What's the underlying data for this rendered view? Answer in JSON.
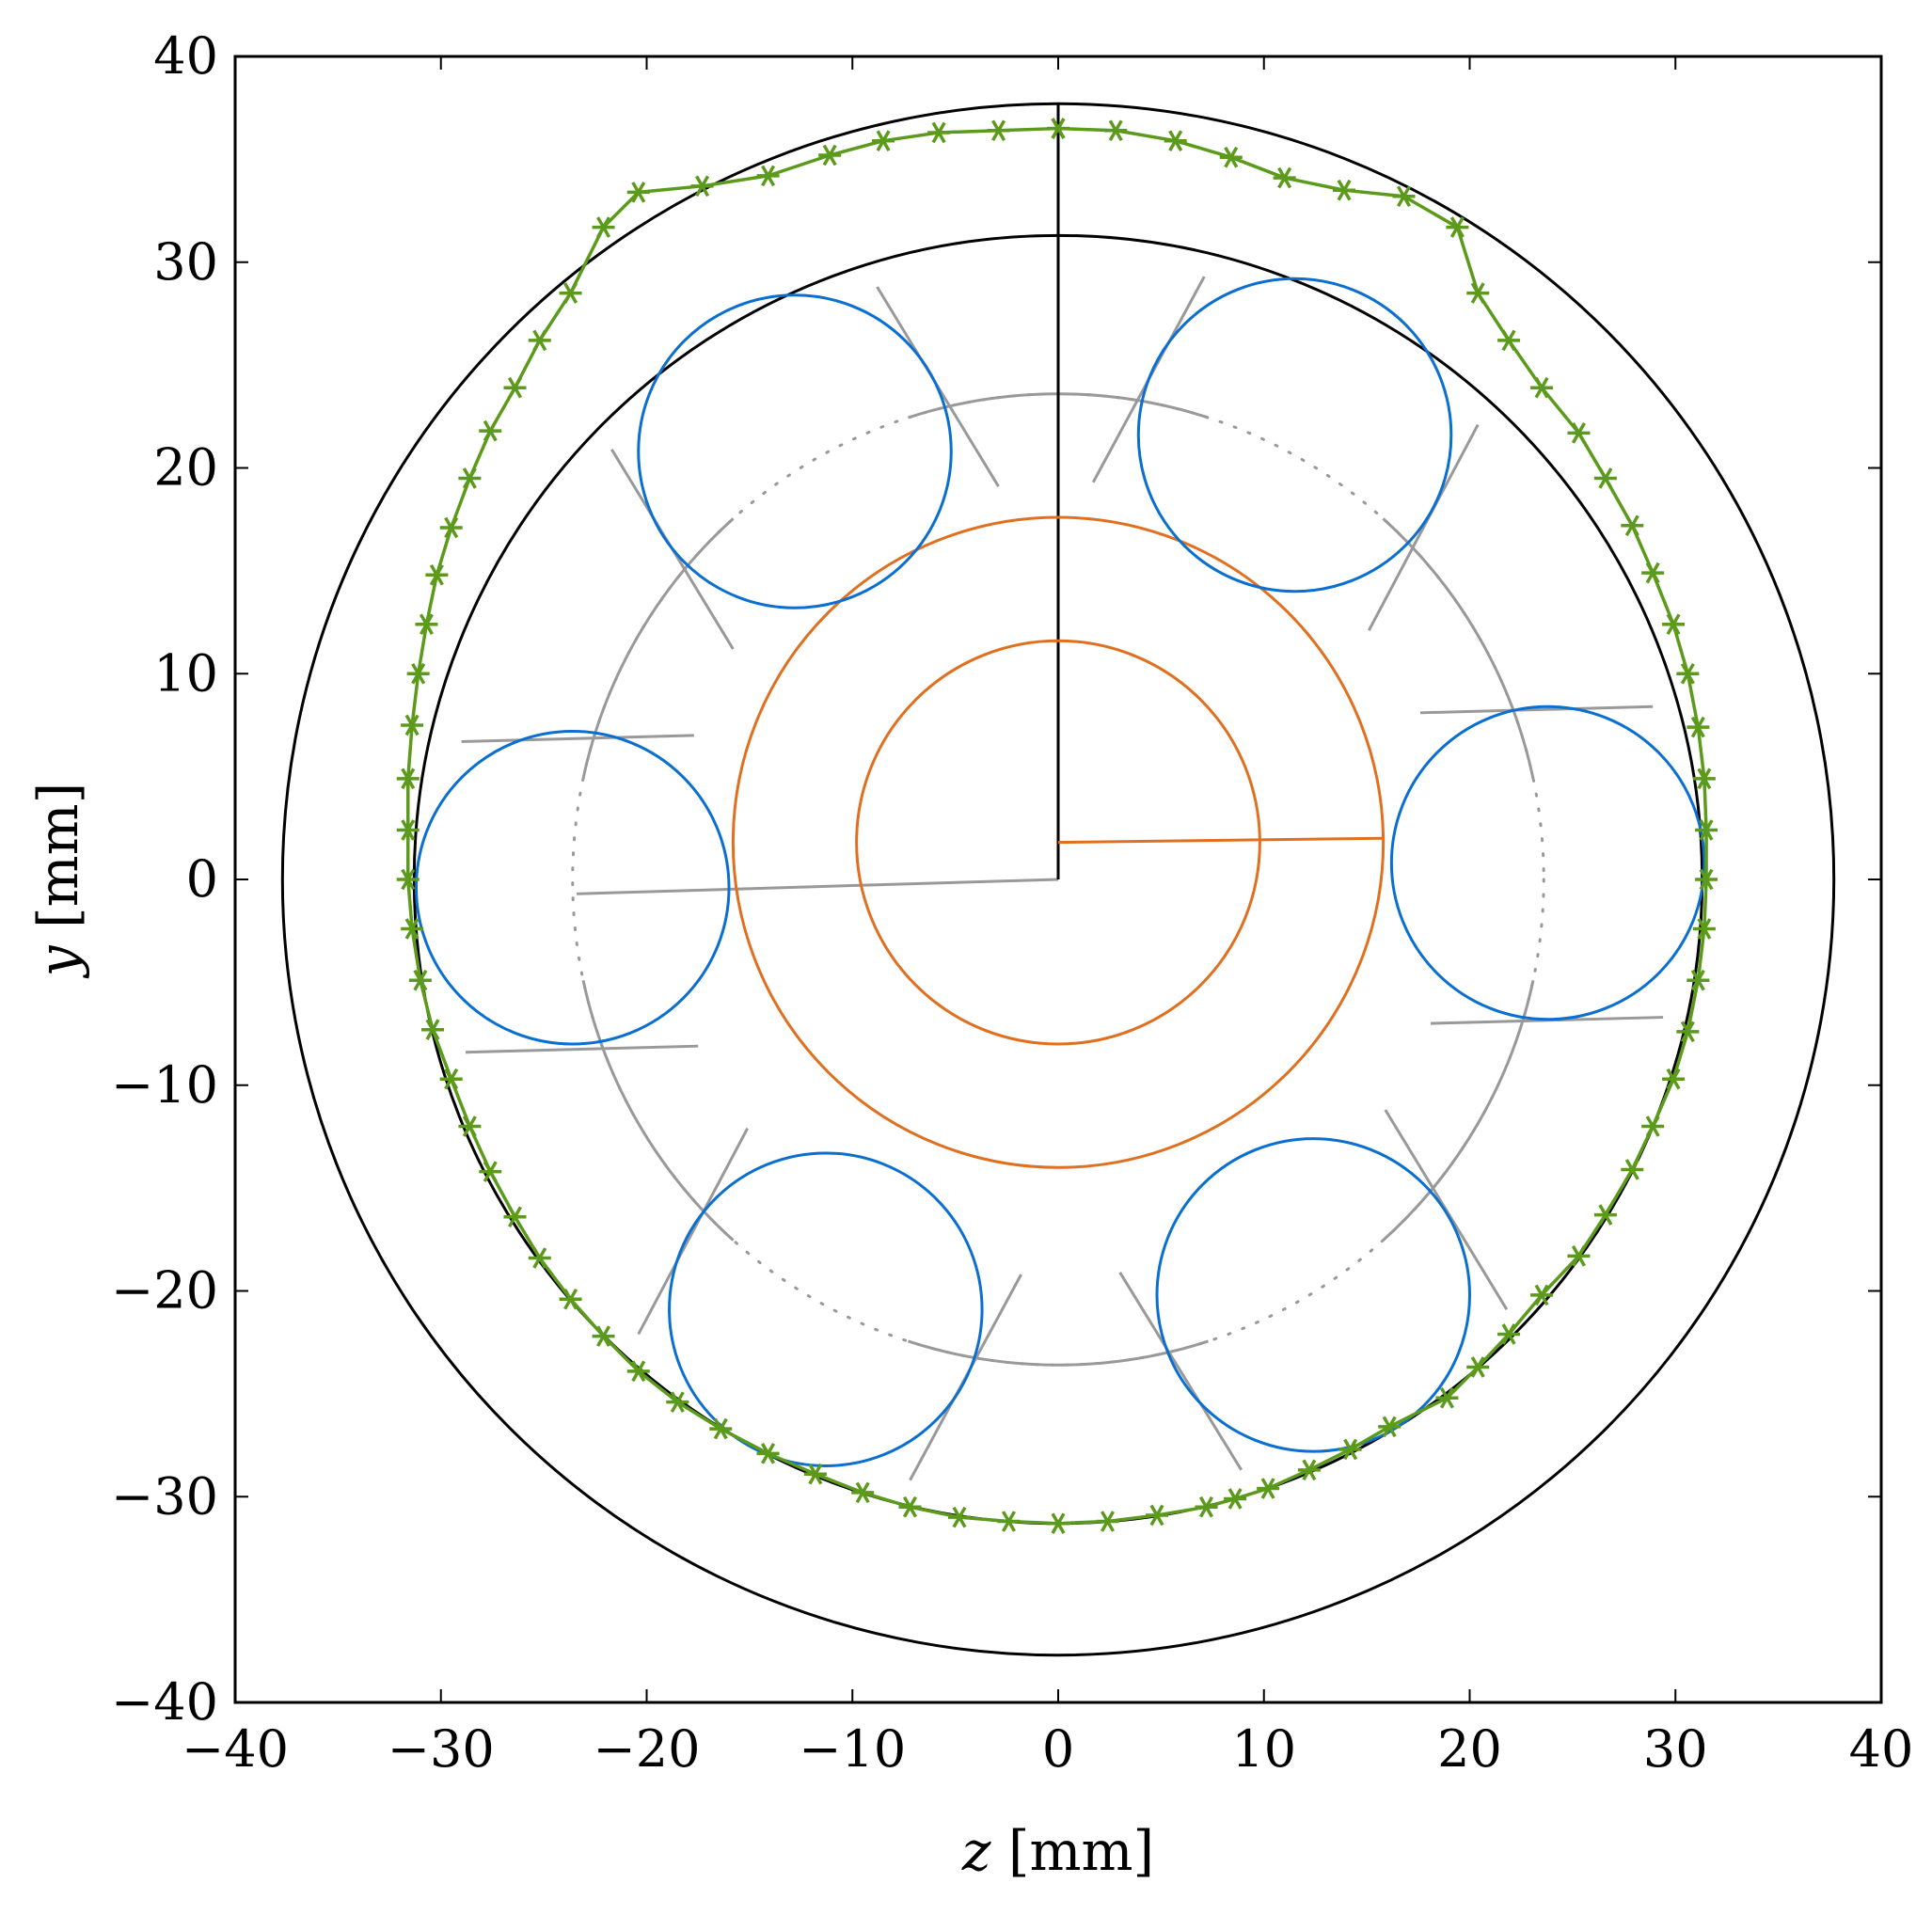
{
  "chart_data": {
    "type": "line",
    "title": "",
    "xlabel": {
      "var": "z",
      "unit": " [mm]"
    },
    "ylabel": {
      "var": "y",
      "unit": " [mm]"
    },
    "xlim": [
      -40,
      40
    ],
    "ylim": [
      -40,
      40
    ],
    "xticks": [
      "−40",
      "−30",
      "−20",
      "−10",
      "0",
      "10",
      "20",
      "30",
      "40"
    ],
    "yticks": [
      "−40",
      "−30",
      "−20",
      "−10",
      "0",
      "10",
      "20",
      "30",
      "40"
    ],
    "xtick_values": [
      -40,
      -30,
      -20,
      -10,
      0,
      10,
      20,
      30,
      40
    ],
    "ytick_values": [
      -40,
      -30,
      -20,
      -10,
      0,
      10,
      20,
      30,
      40
    ],
    "grid": false,
    "legend": "none",
    "colors": {
      "outer_race": "#000000",
      "rollers": "#0a6fd0",
      "inner_race": "#e07020",
      "cage": "#999999",
      "measured": "#5b9a1a"
    },
    "outer_race_circles": [
      {
        "cz": 0,
        "cy": 0,
        "r": 37.7
      },
      {
        "cz": 0,
        "cy": 0,
        "r": 31.3
      }
    ],
    "vertical_ref_line": {
      "z": [
        0,
        0
      ],
      "y": [
        0,
        37.7
      ]
    },
    "cage_circle": {
      "cz": 0,
      "cy": 0,
      "r": 23.6
    },
    "cage_ref_line": {
      "z": [
        0,
        -23.4
      ],
      "y": [
        0,
        -0.7
      ]
    },
    "inner_race_circles": [
      {
        "cz": 0,
        "cy": 1.8,
        "r": 15.8
      },
      {
        "cz": 0,
        "cy": 1.8,
        "r": 9.8
      }
    ],
    "inner_ref_line": {
      "z": [
        0,
        15.8
      ],
      "y": [
        1.8,
        2.0
      ]
    },
    "rollers": [
      {
        "cz": -12.8,
        "cy": 20.8,
        "r": 7.6
      },
      {
        "cz": 11.5,
        "cy": 21.6,
        "r": 7.6
      },
      {
        "cz": 23.8,
        "cy": 0.8,
        "r": 7.6
      },
      {
        "cz": 12.4,
        "cy": -20.2,
        "r": 7.6
      },
      {
        "cz": -11.3,
        "cy": -20.9,
        "r": 7.6
      },
      {
        "cz": -23.6,
        "cy": -0.4,
        "r": 7.6
      }
    ],
    "cage_pocket_lines": [
      {
        "z": [
          -8.8,
          -2.9
        ],
        "y": [
          28.8,
          19.1
        ]
      },
      {
        "z": [
          -21.7,
          -15.8
        ],
        "y": [
          20.9,
          11.2
        ]
      },
      {
        "z": [
          7.1,
          1.7
        ],
        "y": [
          29.3,
          19.3
        ]
      },
      {
        "z": [
          20.4,
          15.1
        ],
        "y": [
          22.1,
          12.1
        ]
      },
      {
        "z": [
          17.6,
          28.9
        ],
        "y": [
          8.1,
          8.4
        ]
      },
      {
        "z": [
          18.1,
          29.4
        ],
        "y": [
          -7.0,
          -6.7
        ]
      },
      {
        "z": [
          15.9,
          21.8
        ],
        "y": [
          -11.2,
          -20.9
        ]
      },
      {
        "z": [
          3.0,
          8.9
        ],
        "y": [
          -19.1,
          -28.7
        ]
      },
      {
        "z": [
          -1.8,
          -7.2
        ],
        "y": [
          -19.2,
          -29.2
        ]
      },
      {
        "z": [
          -15.1,
          -20.4
        ],
        "y": [
          -12.1,
          -22.1
        ]
      },
      {
        "z": [
          -29.0,
          -17.7
        ],
        "y": [
          6.7,
          7.0
        ]
      },
      {
        "z": [
          -28.8,
          -17.5
        ],
        "y": [
          -8.4,
          -8.1
        ]
      }
    ],
    "measured_profile": {
      "z": [
        0,
        2.8,
        5.7,
        8.4,
        11.0,
        13.9,
        16.8,
        19.4,
        20.4,
        21.9,
        23.5,
        25.3,
        26.6,
        27.9,
        28.9,
        29.9,
        30.6,
        31.1,
        31.4,
        31.5,
        31.5,
        31.4,
        31.1,
        30.6,
        29.9,
        28.9,
        27.9,
        26.6,
        25.3,
        23.5,
        21.9,
        20.4,
        18.9,
        16.1,
        14.2,
        12.2,
        10.2,
        8.6,
        7.2,
        4.8,
        2.4,
        0,
        -2.4,
        -4.8,
        -7.2,
        -9.5,
        -11.8,
        -14.1,
        -16.4,
        -18.5,
        -20.4,
        -22.1,
        -23.7,
        -25.2,
        -26.4,
        -27.6,
        -28.6,
        -29.5,
        -30.4,
        -31.0,
        -31.4,
        -31.6,
        -31.6,
        -31.6,
        -31.4,
        -31.1,
        -30.7,
        -30.2,
        -29.5,
        -28.6,
        -27.6,
        -26.4,
        -25.2,
        -23.7,
        -22.1,
        -20.4,
        -17.3,
        -14.1,
        -11.1,
        -8.5,
        -5.8,
        -2.9,
        0
      ],
      "y": [
        36.5,
        36.4,
        35.9,
        35.1,
        34.1,
        33.5,
        33.2,
        31.7,
        28.5,
        26.2,
        23.9,
        21.7,
        19.5,
        17.2,
        14.9,
        12.4,
        10.0,
        7.4,
        4.9,
        2.4,
        0,
        -2.4,
        -4.9,
        -7.4,
        -9.7,
        -12.0,
        -14.1,
        -16.3,
        -18.3,
        -20.2,
        -22.1,
        -23.7,
        -25.2,
        -26.6,
        -27.7,
        -28.7,
        -29.6,
        -30.1,
        -30.5,
        -30.9,
        -31.2,
        -31.3,
        -31.2,
        -31.0,
        -30.5,
        -29.8,
        -28.9,
        -27.9,
        -26.7,
        -25.4,
        -23.9,
        -22.2,
        -20.4,
        -18.4,
        -16.4,
        -14.2,
        -12.0,
        -9.7,
        -7.3,
        -4.9,
        -2.4,
        0,
        2.4,
        4.9,
        7.5,
        10.0,
        12.4,
        14.8,
        17.1,
        19.5,
        21.8,
        23.9,
        26.2,
        28.5,
        31.7,
        33.4,
        33.7,
        34.2,
        35.2,
        35.9,
        36.3,
        36.4,
        36.5
      ]
    }
  }
}
